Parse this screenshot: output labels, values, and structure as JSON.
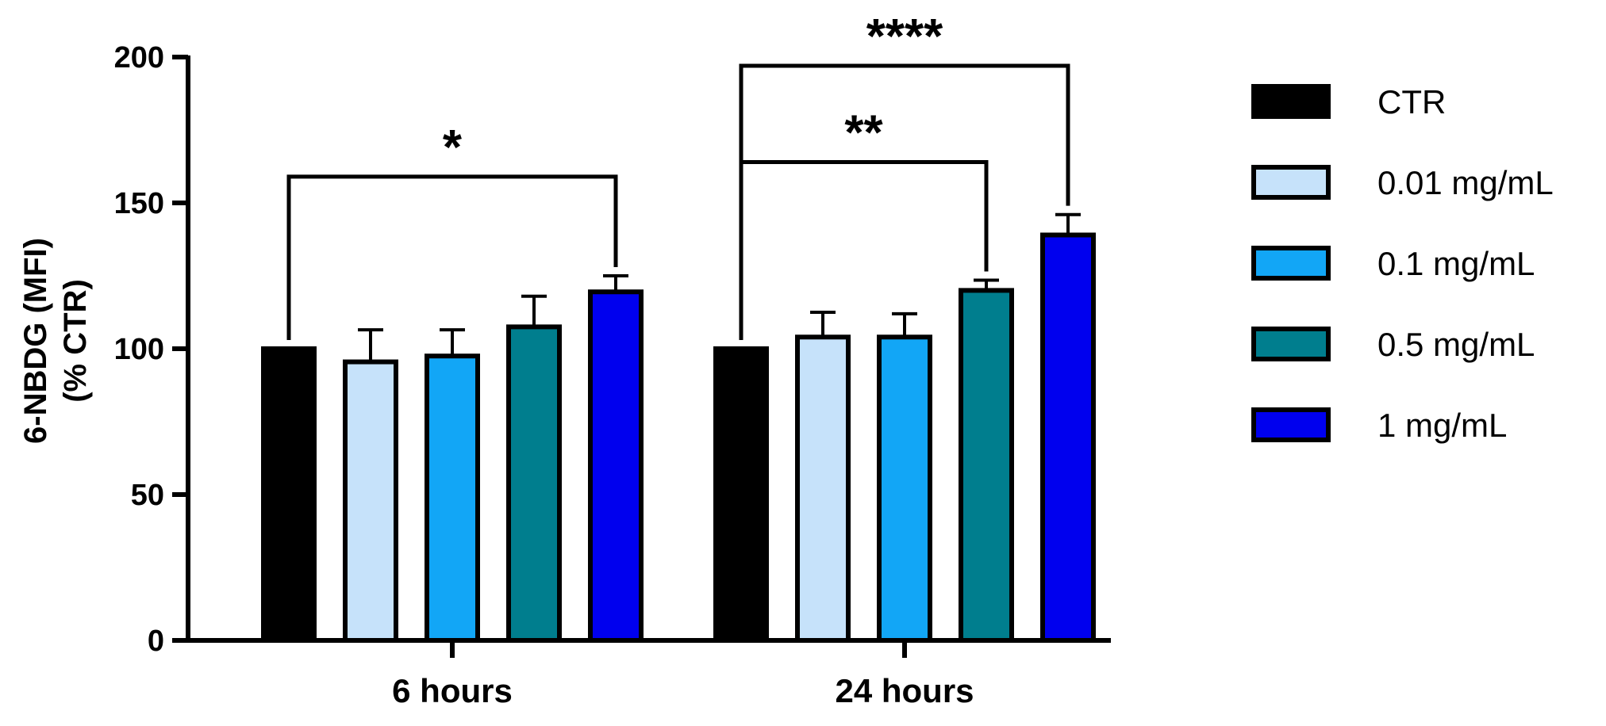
{
  "chart_data": {
    "type": "bar",
    "ylabel": "6-NBDG (MFI)",
    "ylabel_line2": "(% CTR)",
    "ylim": [
      0,
      200
    ],
    "yticks": [
      0,
      50,
      100,
      150,
      200
    ],
    "grid": false,
    "legend_position": "right",
    "categories": [
      "6 hours",
      "24 hours"
    ],
    "series": [
      {
        "name": "CTR",
        "color": "#000000",
        "values": [
          100,
          100
        ],
        "errors": [
          0,
          0
        ]
      },
      {
        "name": "0.01 mg/mL",
        "color": "#c6e2fa",
        "values": [
          95.5,
          104
        ],
        "errors": [
          11,
          8.5
        ]
      },
      {
        "name": "0.1 mg/mL",
        "color": "#12a6f6",
        "values": [
          97.5,
          104
        ],
        "errors": [
          9,
          8
        ]
      },
      {
        "name": "0.5 mg/mL",
        "color": "#007e8e",
        "values": [
          107.5,
          120
        ],
        "errors": [
          10.5,
          3.5
        ]
      },
      {
        "name": "1 mg/mL",
        "color": "#0000ee",
        "values": [
          119.5,
          139
        ],
        "errors": [
          5.5,
          7
        ]
      }
    ],
    "significance": [
      {
        "category": 0,
        "from_series": 0,
        "to_series": 4,
        "bracket_y": 159,
        "label": "*"
      },
      {
        "category": 1,
        "from_series": 0,
        "to_series": 3,
        "bracket_y": 164,
        "label": "**"
      },
      {
        "category": 1,
        "from_series": 0,
        "to_series": 4,
        "bracket_y": 197,
        "label": "****"
      }
    ]
  }
}
